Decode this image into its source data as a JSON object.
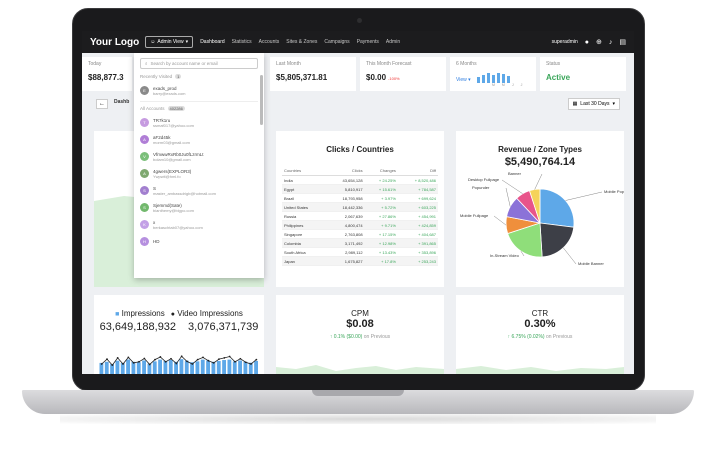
{
  "nav": {
    "logo": "Your Logo",
    "view_label": "Admin View",
    "items": [
      "Dashboard",
      "Statistics",
      "Accounts",
      "Sites & Zones",
      "Campaigns",
      "Payments",
      "Admin"
    ],
    "active_index": 0,
    "username": "superadmin"
  },
  "stats": {
    "today_label": "Today",
    "today_value": "$88,877.3",
    "last_month_label": "Last Month",
    "last_month_value": "$5,805,371.81",
    "forecast_label": "This Month Forecast",
    "forecast_value": "$0.00",
    "forecast_change": "-100%",
    "six_months_label": "6 Months",
    "six_months_view": "View",
    "six_months_bars": [
      0.45,
      0.6,
      0.7,
      0.55,
      0.75,
      0.65,
      0.5
    ],
    "six_months_ticks": [
      "M",
      "M",
      "J",
      "J"
    ],
    "status_label": "Status",
    "status_value": "Active",
    "status_color": "#3aa65a"
  },
  "toolbar": {
    "back_icon": "arrow-left-icon",
    "tab_label": "Dashb",
    "date_label": "Last 30 Days"
  },
  "dropdown": {
    "search_placeholder": "Search by account name or email",
    "recent_label": "Recently Visited",
    "recent_count": "1",
    "recent": [
      {
        "initial": "E",
        "name": "exads_prod",
        "email": "barry@exads.com",
        "color": "#8a8a8a"
      }
    ],
    "all_label": "All Accounts",
    "all_count": "402286",
    "accounts": [
      {
        "initial": "T",
        "name": "TR7k1ru",
        "email": "ssmaf017@yahoo.com",
        "color": "#c69be0"
      },
      {
        "initial": "A",
        "name": "aF2d45k",
        "email": "morm03@gmail.com",
        "color": "#b07ed6"
      },
      {
        "initial": "V",
        "name": "VfmwwRxRb0Ju0fLzrmLt",
        "email": "bolam10@gmail.com",
        "color": "#7bbf7a"
      },
      {
        "initial": "A",
        "name": "4gwers(EXPLOR3)",
        "email": "Ywpwit@hml.fo",
        "color": "#7fa870"
      },
      {
        "initial": "S",
        "name": "S",
        "email": "master_ambassdrigb@hotmail.com",
        "color": "#a27fcf"
      },
      {
        "initial": "S",
        "name": "Sjemmd(Sate)",
        "email": "bianthemy@bigpo.com",
        "color": "#72b86d"
      },
      {
        "initial": "K",
        "name": "x",
        "email": "berkaschtab07@yahoo.com",
        "color": "#c3a0e6"
      },
      {
        "initial": "H",
        "name": "HD",
        "email": "",
        "color": "#b690df"
      }
    ]
  },
  "clicks": {
    "title": "Clicks / Countries",
    "headers": [
      "Countries",
      "Clicks",
      "Changes",
      "Diff"
    ],
    "rows": [
      [
        "India",
        "43,654,128",
        "+ 24.25%",
        "+ 8,520,486"
      ],
      [
        "Egypt",
        "5,810,917",
        "+ 15.61%",
        "+ 784,587"
      ],
      [
        "Brazil",
        "18,793,958",
        "+ 3.97%",
        "+ 699,624"
      ],
      [
        "United States",
        "18,442,336",
        "+ 5.72%",
        "+ 603,225"
      ],
      [
        "Russia",
        "2,067,639",
        "+ 27.86%",
        "+ 454,991"
      ],
      [
        "Philippines",
        "4,800,474",
        "+ 9.71%",
        "+ 424,859"
      ],
      [
        "Singapore",
        "2,763,808",
        "+ 17.15%",
        "+ 404,687"
      ],
      [
        "Colombia",
        "3,171,492",
        "+ 12.98%",
        "+ 391,865"
      ],
      [
        "South Africa",
        "2,989,112",
        "+ 13.43%",
        "+ 353,896"
      ],
      [
        "Japan",
        "1,675,827",
        "+ 17.8%",
        "+ 253,243"
      ]
    ]
  },
  "revenue": {
    "title": "Revenue / Zone Types",
    "value": "$5,490,764.14"
  },
  "chart_data": [
    {
      "type": "pie",
      "title": "Revenue / Zone Types",
      "categories": [
        "Mobile Popunder",
        "Mobile Banner",
        "In-Stream Video",
        "Mobile Fullpage",
        "Popunder",
        "Desktop Fullpage",
        "Banner"
      ],
      "values": [
        27,
        22,
        21,
        8,
        10,
        7,
        5
      ],
      "colors": [
        "#5ea8e8",
        "#3d3f47",
        "#8fde7a",
        "#ef8f3c",
        "#8b72d8",
        "#e8548a",
        "#f5d35a"
      ]
    },
    {
      "type": "bar",
      "title": "Impressions",
      "values": [
        0.55,
        0.6,
        0.5,
        0.65,
        0.55,
        0.7,
        0.6,
        0.58,
        0.66,
        0.52,
        0.62,
        0.7,
        0.64,
        0.68,
        0.6,
        0.72,
        0.65,
        0.58,
        0.62,
        0.7,
        0.66,
        0.6,
        0.64,
        0.68,
        0.7,
        0.62,
        0.66,
        0.6,
        0.56,
        0.64
      ],
      "series": [
        {
          "name": "Impressions",
          "values": [
            0.55,
            0.6,
            0.5,
            0.65,
            0.55,
            0.7,
            0.6,
            0.58,
            0.66,
            0.52,
            0.62,
            0.7,
            0.64,
            0.68,
            0.6,
            0.72,
            0.65,
            0.58,
            0.62,
            0.7,
            0.66,
            0.6,
            0.64,
            0.68,
            0.7,
            0.62,
            0.66,
            0.6,
            0.56,
            0.64
          ]
        },
        {
          "name": "Video Impressions",
          "values": [
            0.5,
            0.72,
            0.45,
            0.78,
            0.5,
            0.8,
            0.55,
            0.6,
            0.75,
            0.48,
            0.7,
            0.82,
            0.6,
            0.74,
            0.52,
            0.85,
            0.62,
            0.5,
            0.7,
            0.8,
            0.65,
            0.55,
            0.72,
            0.78,
            0.84,
            0.6,
            0.74,
            0.58,
            0.5,
            0.7
          ]
        }
      ]
    }
  ],
  "impressions": {
    "legend_impressions": "Impressions",
    "legend_video": "Video Impressions",
    "impressions_value": "63,649,188,932",
    "video_value": "3,076,371,739"
  },
  "cpm": {
    "title": "CPM",
    "value": "$0.08",
    "change": "↑ 0.1% ($0.00)",
    "suffix": "on Previous"
  },
  "ctr": {
    "title": "CTR",
    "value": "0.30%",
    "change": "↑ 6.75% (0.02%)",
    "suffix": "on Previous"
  }
}
